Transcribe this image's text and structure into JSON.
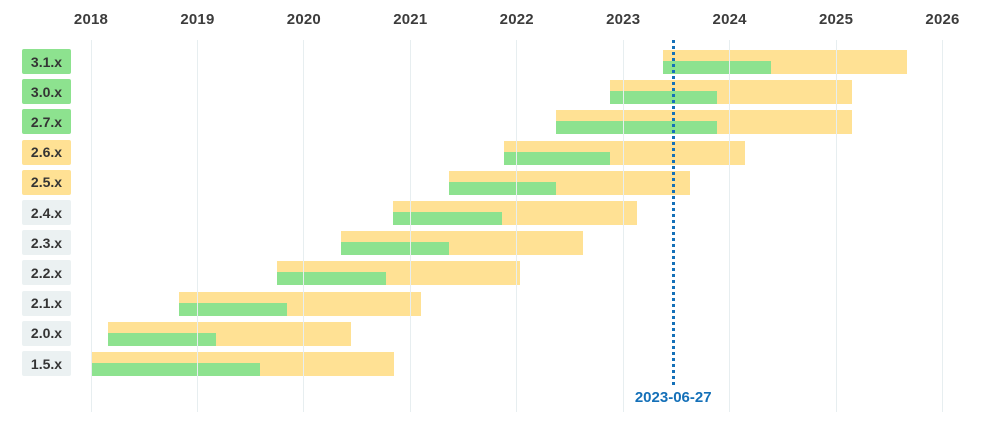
{
  "chart_data": {
    "type": "timeline_gantt",
    "description_of_encoding": "Horizontal bars per software version; wide yellow bar = full support window, inner green bar = open-source/active support window; x positions are decimal years read from the axis",
    "x_axis": {
      "position": "top",
      "tick_labels": [
        "2018",
        "2019",
        "2020",
        "2021",
        "2022",
        "2023",
        "2024",
        "2025",
        "2026"
      ],
      "range": [
        2018,
        2026
      ],
      "grid": true
    },
    "rows": [
      {
        "version": "3.1.x",
        "label_style": "active",
        "start": 2023.37,
        "oss_end": 2024.39,
        "end": 2025.67
      },
      {
        "version": "3.0.x",
        "label_style": "active",
        "start": 2022.88,
        "oss_end": 2023.88,
        "end": 2025.15
      },
      {
        "version": "2.7.x",
        "label_style": "active",
        "start": 2022.37,
        "oss_end": 2023.88,
        "end": 2025.15
      },
      {
        "version": "2.6.x",
        "label_style": "support",
        "start": 2021.88,
        "oss_end": 2022.88,
        "end": 2024.14
      },
      {
        "version": "2.5.x",
        "label_style": "support",
        "start": 2021.36,
        "oss_end": 2022.37,
        "end": 2023.63
      },
      {
        "version": "2.4.x",
        "label_style": "eol",
        "start": 2020.84,
        "oss_end": 2021.86,
        "end": 2023.13
      },
      {
        "version": "2.3.x",
        "label_style": "eol",
        "start": 2020.35,
        "oss_end": 2021.36,
        "end": 2022.62
      },
      {
        "version": "2.2.x",
        "label_style": "eol",
        "start": 2019.75,
        "oss_end": 2020.77,
        "end": 2022.03
      },
      {
        "version": "2.1.x",
        "label_style": "eol",
        "start": 2018.83,
        "oss_end": 2019.84,
        "end": 2021.1
      },
      {
        "version": "2.0.x",
        "label_style": "eol",
        "start": 2018.16,
        "oss_end": 2019.17,
        "end": 2020.44
      },
      {
        "version": "1.5.x",
        "label_style": "eol",
        "start": 2018.0,
        "oss_end": 2019.59,
        "end": 2020.85
      }
    ],
    "today_marker": {
      "label": "2023-06-27",
      "position": 2023.47
    },
    "colors": {
      "support_bar": "#ffe194",
      "oss_bar": "#8de28f",
      "label_active_bg": "#8de28f",
      "label_support_bg": "#ffe194",
      "label_eol_bg": "#ebf1f2",
      "gridline": "#e7eef0",
      "axis_text": "#3c3c3c",
      "today_blue": "#1470b8"
    }
  }
}
